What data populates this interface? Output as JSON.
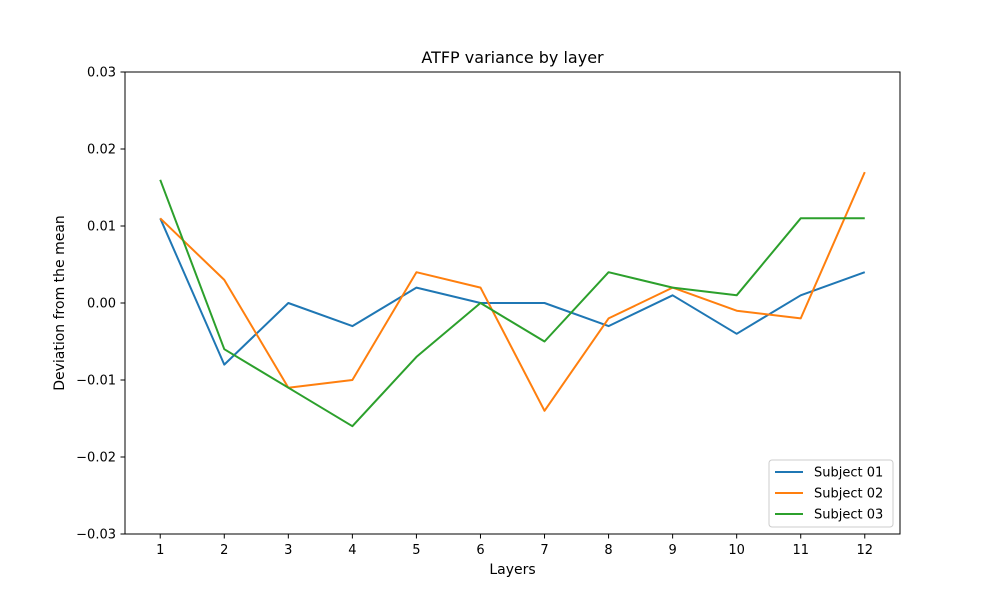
{
  "chart_data": {
    "type": "line",
    "title": "ATFP variance by layer",
    "xlabel": "Layers",
    "ylabel": "Deviation from the mean",
    "x": [
      1,
      2,
      3,
      4,
      5,
      6,
      7,
      8,
      9,
      10,
      11,
      12
    ],
    "xticks": [
      "1",
      "2",
      "3",
      "4",
      "5",
      "6",
      "7",
      "8",
      "9",
      "10",
      "11",
      "12"
    ],
    "xlim": [
      0.45,
      12.55
    ],
    "ylim": [
      -0.03,
      0.03
    ],
    "yticks": [
      -0.03,
      -0.02,
      -0.01,
      0.0,
      0.01,
      0.02,
      0.03
    ],
    "ytick_labels": [
      "−0.03",
      "−0.02",
      "−0.01",
      "0.00",
      "0.01",
      "0.02",
      "0.03"
    ],
    "grid": false,
    "legend_position": "lower-right",
    "series": [
      {
        "name": "Subject 01",
        "color": "#1f77b4",
        "values": [
          0.011,
          -0.008,
          0.0,
          -0.003,
          0.002,
          0.0,
          0.0,
          -0.003,
          0.001,
          -0.004,
          0.001,
          0.004
        ]
      },
      {
        "name": "Subject 02",
        "color": "#ff7f0e",
        "values": [
          0.011,
          0.003,
          -0.011,
          -0.01,
          0.004,
          0.002,
          -0.014,
          -0.002,
          0.002,
          -0.001,
          -0.002,
          0.017
        ]
      },
      {
        "name": "Subject 03",
        "color": "#2ca02c",
        "values": [
          0.016,
          -0.006,
          -0.011,
          -0.016,
          -0.007,
          0.0,
          -0.005,
          0.004,
          0.002,
          0.001,
          0.011,
          0.011
        ]
      }
    ]
  }
}
